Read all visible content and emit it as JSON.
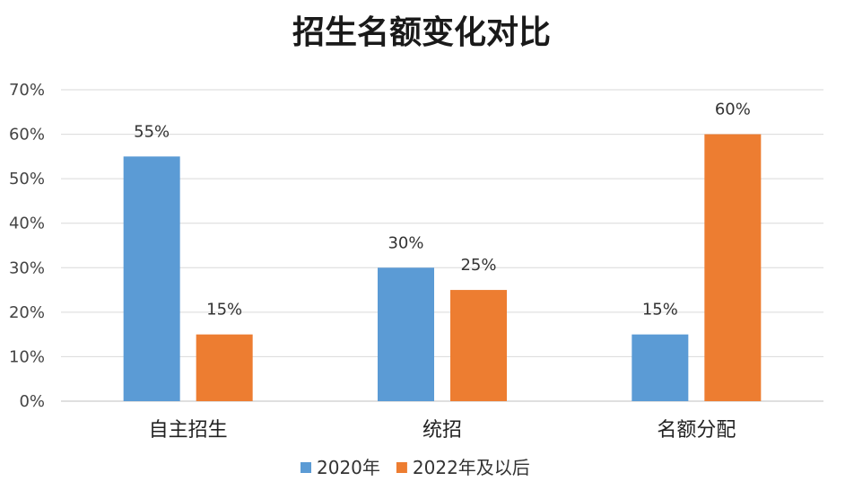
{
  "chart_data": {
    "type": "bar",
    "title": "招生名额变化对比",
    "categories": [
      "自主招生",
      "统招",
      "名额分配"
    ],
    "series": [
      {
        "name": "2020年",
        "values": [
          55,
          30,
          15
        ],
        "labels": [
          "55%",
          "30%",
          "15%"
        ],
        "color": "#5b9bd5"
      },
      {
        "name": "2022年及以后",
        "values": [
          15,
          25,
          60
        ],
        "labels": [
          "15%",
          "25%",
          "60%"
        ],
        "color": "#ed7d31"
      }
    ],
    "y_ticks": [
      "0%",
      "10%",
      "20%",
      "30%",
      "40%",
      "50%",
      "60%",
      "70%"
    ],
    "ylim": [
      0,
      70
    ],
    "grid": true,
    "legend": "bottom"
  }
}
